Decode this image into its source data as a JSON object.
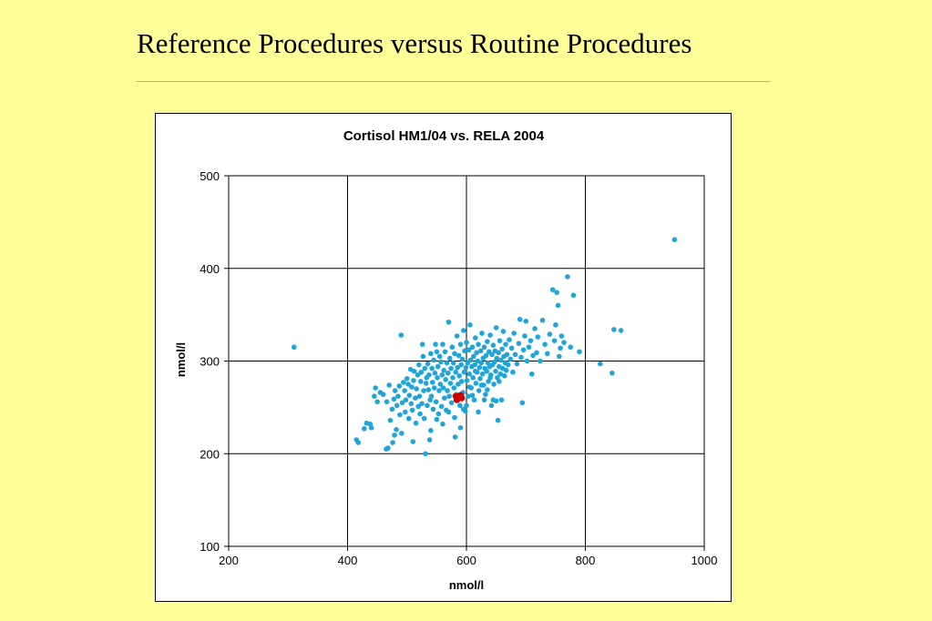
{
  "slide": {
    "title": "Reference Procedures versus Routine Procedures"
  },
  "colors": {
    "background": "#FFFF99",
    "title_rule": "#F0A060",
    "point_main": "#1FA5DA",
    "point_reference": "#CC0000"
  },
  "chart_data": {
    "type": "scatter",
    "title": "Cortisol HM1/04 vs. RELA 2004",
    "xlabel": "nmol/l",
    "ylabel": "nmol/l",
    "xlim": [
      200,
      1000
    ],
    "ylim": [
      100,
      500
    ],
    "xticks": [
      200,
      400,
      600,
      800,
      1000
    ],
    "yticks": [
      100,
      200,
      300,
      400,
      500
    ],
    "grid": true,
    "legend": "none",
    "series": [
      {
        "color": "#1FA5DA",
        "points": [
          [
            310,
            315
          ],
          [
            415,
            215
          ],
          [
            418,
            212
          ],
          [
            428,
            227
          ],
          [
            432,
            233
          ],
          [
            438,
            232
          ],
          [
            440,
            228
          ],
          [
            445,
            262
          ],
          [
            447,
            271
          ],
          [
            450,
            256
          ],
          [
            455,
            266
          ],
          [
            460,
            264
          ],
          [
            465,
            205
          ],
          [
            466,
            256
          ],
          [
            468,
            206
          ],
          [
            470,
            274
          ],
          [
            472,
            236
          ],
          [
            475,
            248
          ],
          [
            476,
            212
          ],
          [
            478,
            259
          ],
          [
            479,
            220
          ],
          [
            480,
            268
          ],
          [
            482,
            226
          ],
          [
            483,
            252
          ],
          [
            485,
            262
          ],
          [
            487,
            273
          ],
          [
            488,
            242
          ],
          [
            490,
            328
          ],
          [
            491,
            222
          ],
          [
            492,
            255
          ],
          [
            494,
            277
          ],
          [
            496,
            268
          ],
          [
            497,
            245
          ],
          [
            498,
            258
          ],
          [
            500,
            281
          ],
          [
            502,
            275
          ],
          [
            503,
            238
          ],
          [
            504,
            263
          ],
          [
            506,
            291
          ],
          [
            507,
            254
          ],
          [
            508,
            272
          ],
          [
            509,
            247
          ],
          [
            510,
            213
          ],
          [
            511,
            279
          ],
          [
            512,
            289
          ],
          [
            514,
            260
          ],
          [
            515,
            233
          ],
          [
            516,
            270
          ],
          [
            518,
            285
          ],
          [
            519,
            251
          ],
          [
            520,
            296
          ],
          [
            521,
            262
          ],
          [
            522,
            243
          ],
          [
            523,
            278
          ],
          [
            524,
            288
          ],
          [
            525,
            254
          ],
          [
            526,
            318
          ],
          [
            527,
            305
          ],
          [
            528,
            268
          ],
          [
            529,
            238
          ],
          [
            530,
            292
          ],
          [
            531,
            200
          ],
          [
            532,
            276
          ],
          [
            533,
            282
          ],
          [
            534,
            252
          ],
          [
            535,
            297
          ],
          [
            536,
            269
          ],
          [
            537,
            285
          ],
          [
            538,
            215
          ],
          [
            539,
            258
          ],
          [
            540,
            308
          ],
          [
            541,
            262
          ],
          [
            542,
            292
          ],
          [
            543,
            277
          ],
          [
            544,
            248
          ],
          [
            545,
            301
          ],
          [
            546,
            271
          ],
          [
            547,
            287
          ],
          [
            548,
            318
          ],
          [
            549,
            256
          ],
          [
            550,
            310
          ],
          [
            551,
            282
          ],
          [
            552,
            294
          ],
          [
            553,
            243
          ],
          [
            554,
            268
          ],
          [
            555,
            305
          ],
          [
            556,
            275
          ],
          [
            557,
            299
          ],
          [
            558,
            251
          ],
          [
            559,
            285
          ],
          [
            560,
            318
          ],
          [
            561,
            271
          ],
          [
            562,
            290
          ],
          [
            563,
            260
          ],
          [
            564,
            310
          ],
          [
            565,
            280
          ],
          [
            566,
            247
          ],
          [
            567,
            298
          ],
          [
            568,
            268
          ],
          [
            569,
            287
          ],
          [
            570,
            342
          ],
          [
            571,
            262
          ],
          [
            572,
            303
          ],
          [
            573,
            276
          ],
          [
            574,
            292
          ],
          [
            575,
            255
          ],
          [
            576,
            315
          ],
          [
            577,
            282
          ],
          [
            578,
            298
          ],
          [
            579,
            271
          ],
          [
            580,
            308
          ],
          [
            581,
            218
          ],
          [
            582,
            288
          ],
          [
            583,
            264
          ],
          [
            584,
            327
          ],
          [
            585,
            293
          ],
          [
            586,
            275
          ],
          [
            587,
            306
          ],
          [
            588,
            284
          ],
          [
            589,
            252
          ],
          [
            590,
            318
          ],
          [
            591,
            296
          ],
          [
            592,
            278
          ],
          [
            593,
            302
          ],
          [
            594,
            266
          ],
          [
            595,
            333
          ],
          [
            596,
            288
          ],
          [
            597,
            311
          ],
          [
            598,
            246
          ],
          [
            599,
            293
          ],
          [
            600,
            320
          ],
          [
            601,
            279
          ],
          [
            602,
            298
          ],
          [
            603,
            262
          ],
          [
            604,
            312
          ],
          [
            605,
            286
          ],
          [
            606,
            339
          ],
          [
            607,
            301
          ],
          [
            608,
            271
          ],
          [
            609,
            294
          ],
          [
            610,
            315
          ],
          [
            611,
            282
          ],
          [
            612,
            305
          ],
          [
            613,
            258
          ],
          [
            614,
            296
          ],
          [
            615,
            325
          ],
          [
            616,
            276
          ],
          [
            617,
            309
          ],
          [
            618,
            288
          ],
          [
            619,
            300
          ],
          [
            620,
            318
          ],
          [
            621,
            268
          ],
          [
            622,
            293
          ],
          [
            623,
            281
          ],
          [
            624,
            311
          ],
          [
            625,
            298
          ],
          [
            626,
            330
          ],
          [
            627,
            286
          ],
          [
            628,
            303
          ],
          [
            629,
            274
          ],
          [
            630,
            315
          ],
          [
            631,
            292
          ],
          [
            632,
            264
          ],
          [
            633,
            306
          ],
          [
            634,
            289
          ],
          [
            635,
            321
          ],
          [
            636,
            298
          ],
          [
            637,
            278
          ],
          [
            638,
            310
          ],
          [
            639,
            294
          ],
          [
            640,
            328
          ],
          [
            641,
            285
          ],
          [
            642,
            252
          ],
          [
            643,
            307
          ],
          [
            644,
            296
          ],
          [
            645,
            317
          ],
          [
            646,
            275
          ],
          [
            647,
            299
          ],
          [
            648,
            311
          ],
          [
            649,
            289
          ],
          [
            650,
            336
          ],
          [
            651,
            303
          ],
          [
            652,
            282
          ],
          [
            653,
            236
          ],
          [
            654,
            309
          ],
          [
            655,
            294
          ],
          [
            656,
            322
          ],
          [
            657,
            286
          ],
          [
            658,
            301
          ],
          [
            659,
            258
          ],
          [
            660,
            313
          ],
          [
            661,
            292
          ],
          [
            662,
            332
          ],
          [
            663,
            305
          ],
          [
            664,
            284
          ],
          [
            665,
            298
          ],
          [
            666,
            318
          ],
          [
            667,
            290
          ],
          [
            668,
            307
          ],
          [
            670,
            296
          ],
          [
            672,
            323
          ],
          [
            674,
            302
          ],
          [
            676,
            314
          ],
          [
            678,
            288
          ],
          [
            680,
            330
          ],
          [
            682,
            307
          ],
          [
            685,
            297
          ],
          [
            688,
            319
          ],
          [
            690,
            345
          ],
          [
            692,
            304
          ],
          [
            694,
            255
          ],
          [
            696,
            312
          ],
          [
            698,
            327
          ],
          [
            700,
            343
          ],
          [
            702,
            300
          ],
          [
            705,
            315
          ],
          [
            708,
            322
          ],
          [
            710,
            286
          ],
          [
            712,
            306
          ],
          [
            715,
            335
          ],
          [
            718,
            309
          ],
          [
            720,
            326
          ],
          [
            724,
            300
          ],
          [
            728,
            344
          ],
          [
            732,
            318
          ],
          [
            736,
            308
          ],
          [
            740,
            329
          ],
          [
            745,
            377
          ],
          [
            748,
            322
          ],
          [
            750,
            339
          ],
          [
            752,
            374
          ],
          [
            754,
            360
          ],
          [
            756,
            305
          ],
          [
            758,
            314
          ],
          [
            760,
            327
          ],
          [
            764,
            320
          ],
          [
            770,
            391
          ],
          [
            775,
            315
          ],
          [
            780,
            371
          ],
          [
            790,
            310
          ],
          [
            825,
            297
          ],
          [
            845,
            287
          ],
          [
            848,
            334
          ],
          [
            860,
            333
          ],
          [
            950,
            431
          ],
          [
            595,
            248
          ],
          [
            605,
            272
          ],
          [
            615,
            289
          ],
          [
            625,
            274
          ],
          [
            635,
            269
          ],
          [
            645,
            258
          ],
          [
            655,
            278
          ],
          [
            560,
            232
          ],
          [
            570,
            245
          ],
          [
            580,
            239
          ],
          [
            590,
            228
          ],
          [
            600,
            252
          ],
          [
            610,
            263
          ],
          [
            620,
            245
          ],
          [
            630,
            258
          ],
          [
            640,
            282
          ],
          [
            650,
            257
          ],
          [
            540,
            225
          ],
          [
            550,
            237
          ]
        ]
      },
      {
        "color": "#CC0000",
        "points": [
          [
            582,
            262
          ],
          [
            586,
            260
          ],
          [
            590,
            263
          ],
          [
            584,
            258
          ],
          [
            588,
            262
          ],
          [
            592,
            260
          ]
        ]
      }
    ]
  }
}
